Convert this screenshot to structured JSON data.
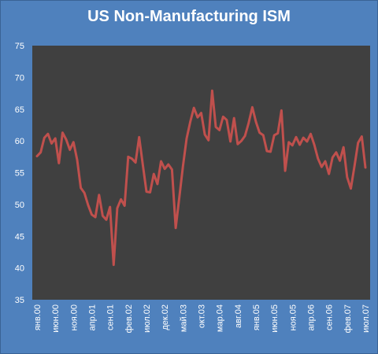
{
  "chart_data": {
    "type": "line",
    "title": "US Non-Manufacturing ISM",
    "xlabel": "",
    "ylabel": "",
    "ylim": [
      35,
      75
    ],
    "yticks": [
      35,
      40,
      45,
      50,
      55,
      60,
      65,
      70,
      75
    ],
    "xtick_labels": [
      "янв.00",
      "июн.00",
      "ноя.00",
      "апр.01",
      "сен.01",
      "фев.02",
      "июл.02",
      "дек.02",
      "май.03",
      "окт.03",
      "мар.04",
      "авг.04",
      "янв.05",
      "июн.05",
      "ноя.05",
      "апр.06",
      "сен.06",
      "фев.07",
      "июл.07"
    ],
    "grid": false,
    "legend": "none",
    "series_color": "#c0504d",
    "plot_background": "#404040",
    "frame_background": "#4f81bd",
    "series": [
      {
        "values": [
          57.6,
          58.2,
          60.5,
          61.1,
          59.6,
          60.4,
          56.5,
          61.3,
          60.2,
          58.6,
          59.8,
          57.0,
          52.6,
          51.8,
          49.9,
          48.4,
          48.0,
          51.5,
          48.2,
          47.6,
          49.6,
          40.5,
          49.4,
          50.8,
          49.8,
          57.5,
          57.2,
          56.6,
          60.6,
          56.2,
          52.0,
          51.9,
          54.8,
          53.2,
          56.8,
          55.6,
          56.3,
          55.5,
          46.3,
          51.1,
          56.0,
          60.4,
          63.0,
          65.2,
          63.7,
          64.4,
          61.0,
          60.1,
          67.9,
          62.2,
          61.7,
          63.8,
          63.3,
          59.9,
          63.6,
          59.5,
          60.0,
          60.8,
          62.8,
          65.3,
          63.0,
          61.3,
          60.9,
          58.4,
          58.3,
          60.9,
          61.2,
          64.8,
          55.3,
          59.8,
          59.3,
          60.6,
          59.4,
          60.5,
          59.9,
          61.1,
          59.4,
          57.2,
          55.9,
          56.8,
          54.8,
          57.4,
          58.2,
          56.9,
          59.0,
          54.3,
          52.5,
          56.0,
          59.7,
          60.7,
          55.8
        ]
      }
    ]
  }
}
